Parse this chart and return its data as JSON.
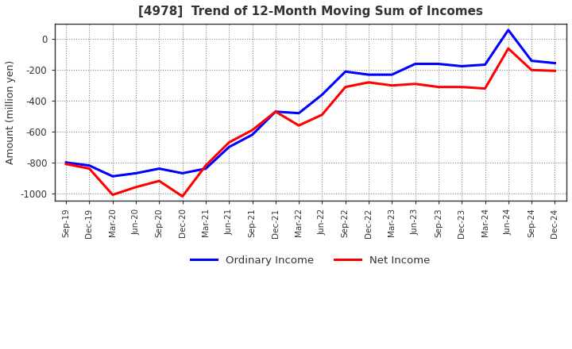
{
  "title": "[4978]  Trend of 12-Month Moving Sum of Incomes",
  "ylabel": "Amount (million yen)",
  "background_color": "#ffffff",
  "plot_background_color": "#ffffff",
  "grid_color": "#888888",
  "title_color": "#333333",
  "x_labels": [
    "Sep-19",
    "Dec-19",
    "Mar-20",
    "Jun-20",
    "Sep-20",
    "Dec-20",
    "Mar-21",
    "Jun-21",
    "Sep-21",
    "Dec-21",
    "Mar-22",
    "Jun-22",
    "Sep-22",
    "Dec-22",
    "Mar-23",
    "Jun-23",
    "Sep-23",
    "Dec-23",
    "Mar-24",
    "Jun-24",
    "Sep-24",
    "Dec-24"
  ],
  "ordinary_income": [
    -800,
    -820,
    -890,
    -870,
    -840,
    -870,
    -840,
    -700,
    -620,
    -470,
    -480,
    -360,
    -210,
    -230,
    -230,
    -160,
    -160,
    -175,
    -165,
    60,
    -140,
    -155
  ],
  "net_income": [
    -810,
    -840,
    -1010,
    -960,
    -920,
    -1020,
    -820,
    -670,
    -590,
    -470,
    -560,
    -490,
    -310,
    -280,
    -300,
    -290,
    -310,
    -310,
    -320,
    -60,
    -200,
    -205
  ],
  "ordinary_income_color": "#0000ff",
  "net_income_color": "#ff0000",
  "ylim": [
    -1050,
    100
  ],
  "yticks": [
    0,
    -200,
    -400,
    -600,
    -800,
    -1000
  ],
  "legend_labels": [
    "Ordinary Income",
    "Net Income"
  ],
  "line_width": 2.2
}
